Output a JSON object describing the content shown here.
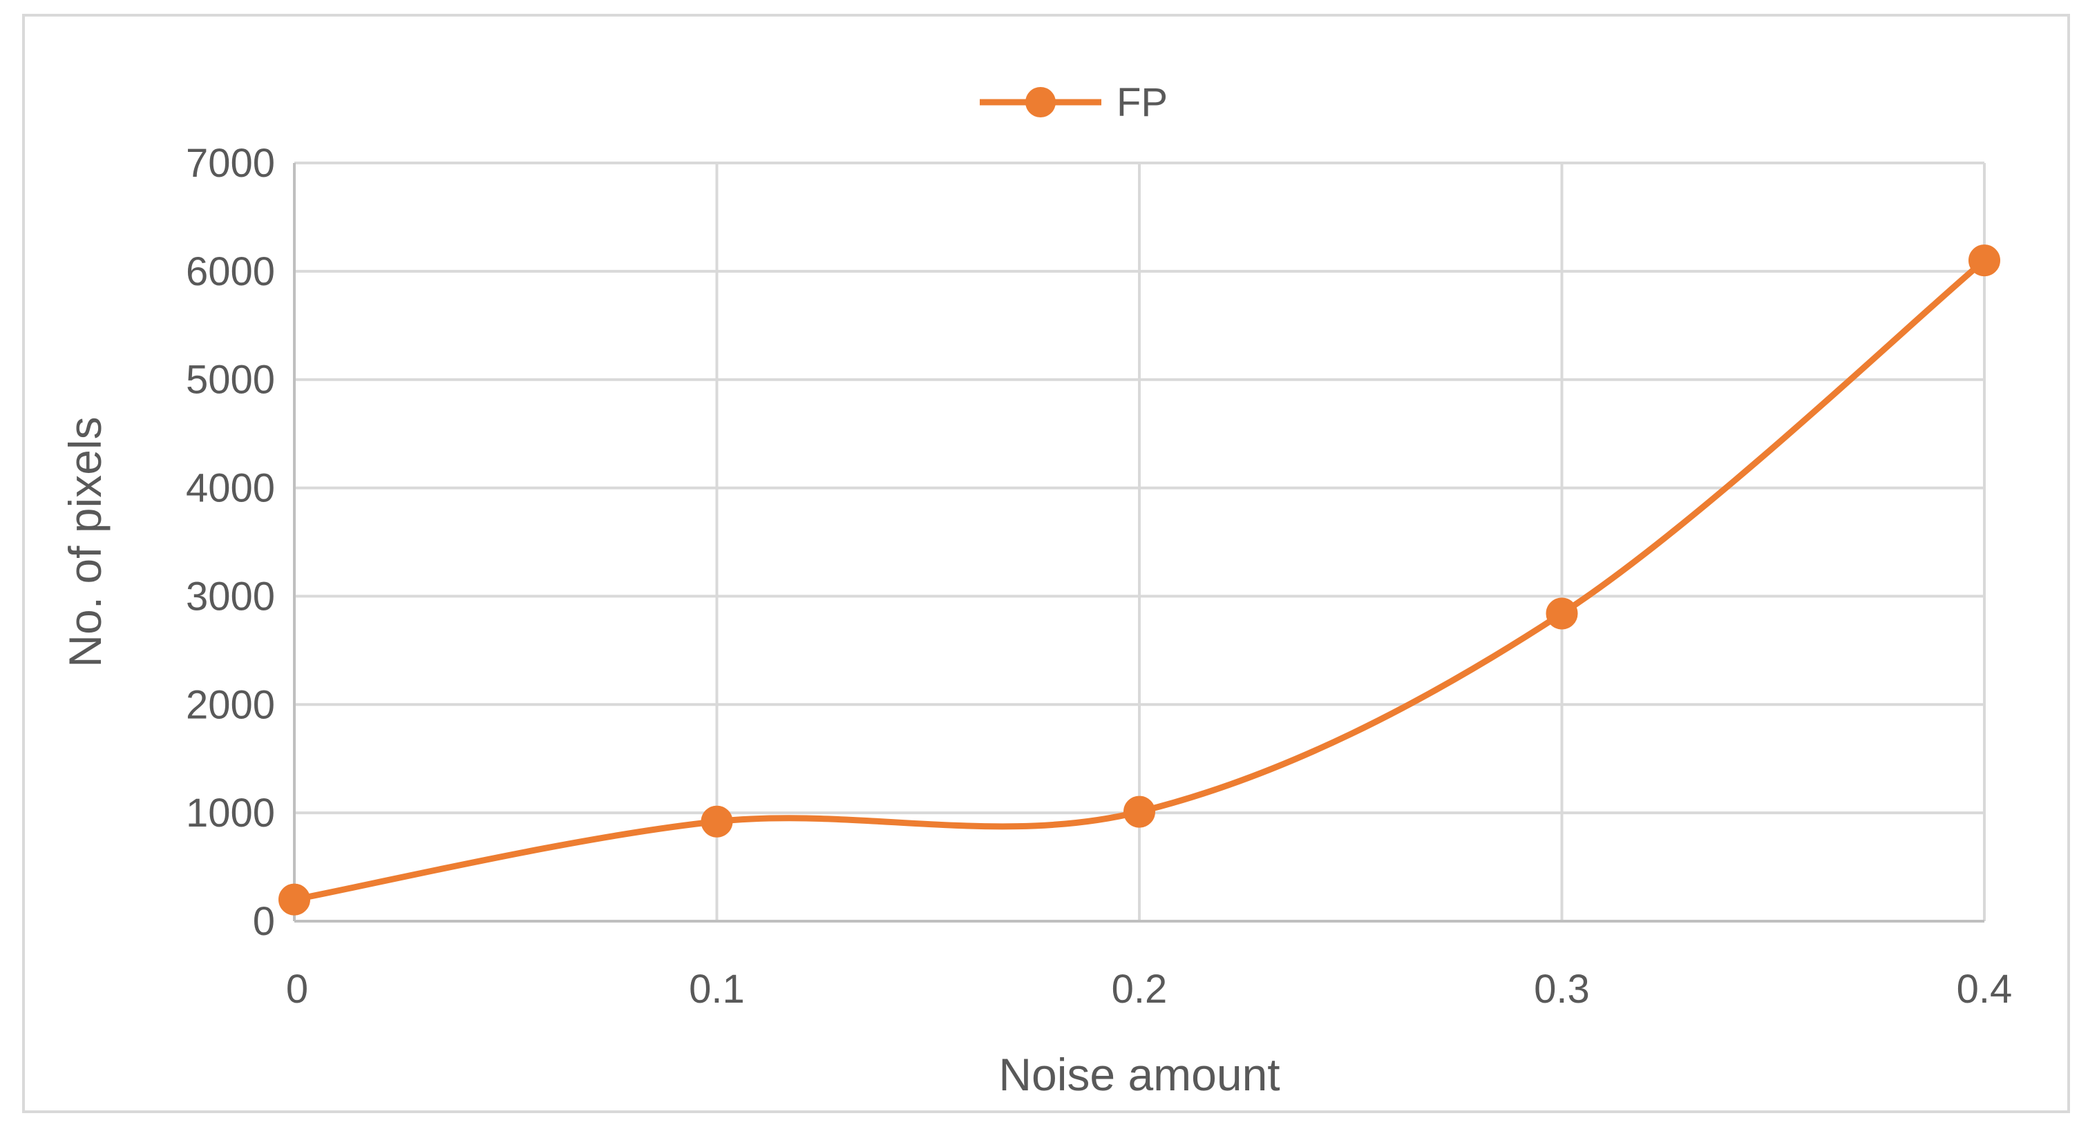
{
  "chart_data": {
    "type": "line",
    "smooth": true,
    "x": [
      0,
      0.1,
      0.2,
      0.3,
      0.4
    ],
    "x_tick_labels": [
      "0",
      "0.1",
      "0.2",
      "0.3",
      "0.4"
    ],
    "series": [
      {
        "name": "FP",
        "color": "#ED7D31",
        "marker": "circle",
        "values": [
          200,
          920,
          1010,
          2840,
          6100
        ]
      }
    ],
    "xlabel": "Noise amount",
    "ylabel": "No. of pixels",
    "xlim": [
      0,
      0.4
    ],
    "ylim": [
      0,
      7000
    ],
    "y_ticks": [
      0,
      1000,
      2000,
      3000,
      4000,
      5000,
      6000,
      7000
    ],
    "y_tick_labels": [
      "0",
      "1000",
      "2000",
      "3000",
      "4000",
      "5000",
      "6000",
      "7000"
    ],
    "grid": {
      "horizontal": true,
      "vertical": true,
      "color": "#d9d9d9"
    },
    "legend_position": "top-center",
    "axis_color": "#bfbfbf",
    "text_color": "#595959"
  }
}
